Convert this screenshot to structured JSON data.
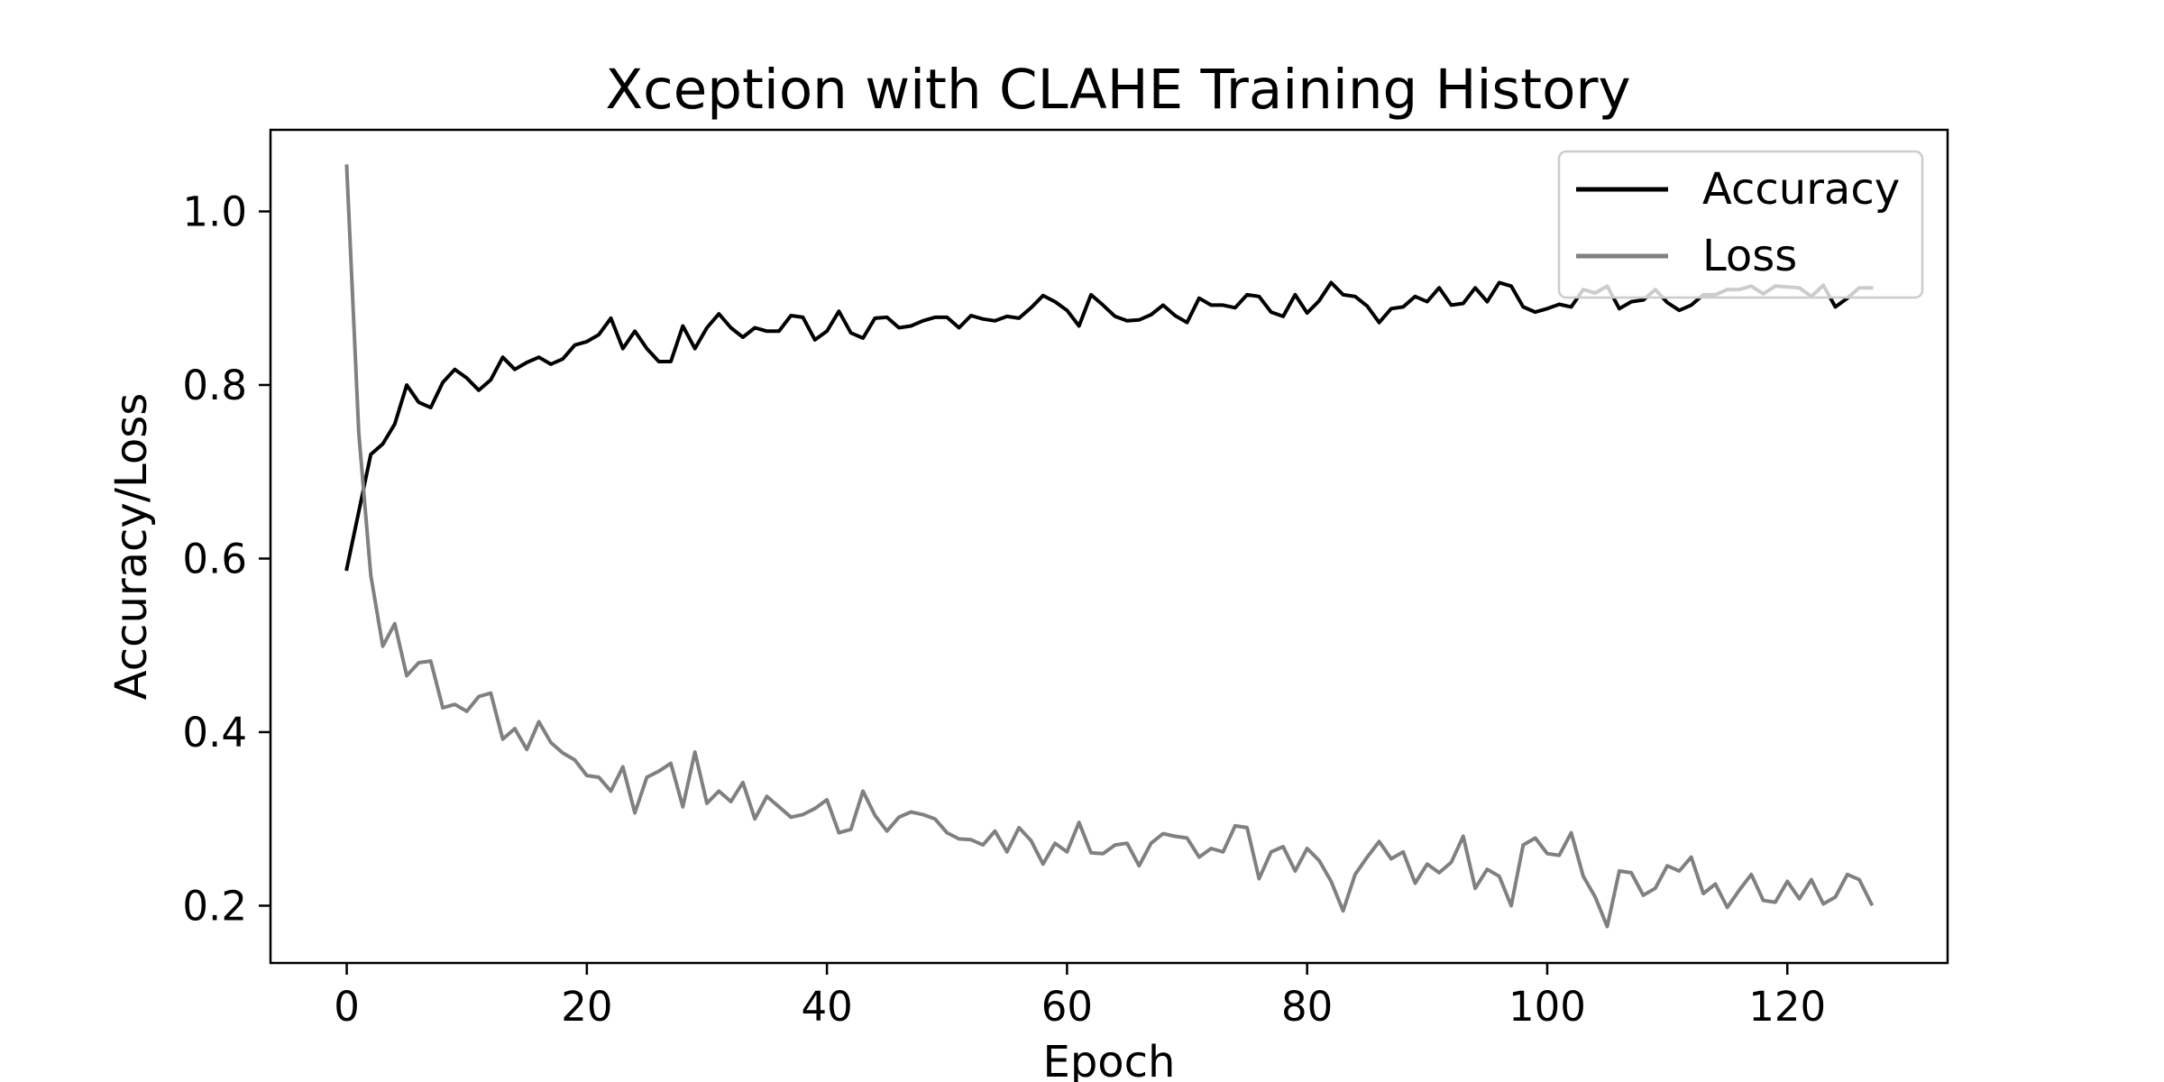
{
  "chart_data": {
    "type": "line",
    "title": "Xception with CLAHE Training History",
    "xlabel": "Epoch",
    "ylabel": "Accuracy/Loss",
    "xlim": [
      -6.35,
      133.35
    ],
    "ylim": [
      0.134,
      1.094
    ],
    "x_ticks": [
      0,
      20,
      40,
      60,
      80,
      100,
      120
    ],
    "y_ticks": [
      0.2,
      0.4,
      0.6,
      0.8,
      1.0
    ],
    "x_tick_labels": [
      "0",
      "20",
      "40",
      "60",
      "80",
      "100",
      "120"
    ],
    "y_tick_labels": [
      "0.2",
      "0.4",
      "0.6",
      "0.8",
      "1.0"
    ],
    "grid": false,
    "legend_position": "top-right",
    "x_start": 0,
    "x_step": 1,
    "series": [
      {
        "name": "Accuracy",
        "color": "#000000",
        "values": [
          0.588,
          0.654,
          0.72,
          0.732,
          0.755,
          0.8,
          0.78,
          0.774,
          0.803,
          0.818,
          0.808,
          0.794,
          0.806,
          0.832,
          0.818,
          0.826,
          0.832,
          0.824,
          0.83,
          0.846,
          0.85,
          0.858,
          0.877,
          0.842,
          0.862,
          0.842,
          0.827,
          0.827,
          0.868,
          0.842,
          0.866,
          0.882,
          0.866,
          0.855,
          0.866,
          0.862,
          0.862,
          0.88,
          0.878,
          0.852,
          0.862,
          0.885,
          0.86,
          0.854,
          0.877,
          0.878,
          0.866,
          0.868,
          0.874,
          0.878,
          0.878,
          0.866,
          0.88,
          0.876,
          0.874,
          0.879,
          0.877,
          0.889,
          0.903,
          0.896,
          0.886,
          0.868,
          0.904,
          0.892,
          0.879,
          0.874,
          0.875,
          0.881,
          0.892,
          0.88,
          0.872,
          0.9,
          0.892,
          0.892,
          0.889,
          0.904,
          0.902,
          0.884,
          0.879,
          0.904,
          0.883,
          0.897,
          0.918,
          0.904,
          0.902,
          0.891,
          0.872,
          0.888,
          0.89,
          0.902,
          0.896,
          0.912,
          0.892,
          0.894,
          0.912,
          0.896,
          0.918,
          0.914,
          0.89,
          0.884,
          0.888,
          0.893,
          0.89,
          0.91,
          0.906,
          0.914,
          0.888,
          0.896,
          0.898,
          0.91,
          0.895,
          0.886,
          0.892,
          0.904,
          0.904,
          0.91,
          0.91,
          0.914,
          0.905,
          0.914,
          0.913,
          0.912,
          0.902,
          0.915,
          0.89,
          0.9,
          0.912,
          0.912
        ]
      },
      {
        "name": "Loss",
        "color": "#808080",
        "values": [
          1.052,
          0.745,
          0.581,
          0.499,
          0.525,
          0.465,
          0.48,
          0.482,
          0.428,
          0.432,
          0.424,
          0.441,
          0.445,
          0.392,
          0.404,
          0.38,
          0.412,
          0.388,
          0.376,
          0.368,
          0.35,
          0.348,
          0.332,
          0.36,
          0.307,
          0.348,
          0.355,
          0.364,
          0.314,
          0.377,
          0.318,
          0.332,
          0.32,
          0.342,
          0.3,
          0.326,
          0.314,
          0.302,
          0.305,
          0.312,
          0.322,
          0.284,
          0.288,
          0.332,
          0.304,
          0.286,
          0.302,
          0.308,
          0.305,
          0.3,
          0.284,
          0.277,
          0.276,
          0.27,
          0.286,
          0.262,
          0.29,
          0.275,
          0.248,
          0.272,
          0.262,
          0.296,
          0.261,
          0.26,
          0.27,
          0.272,
          0.246,
          0.272,
          0.283,
          0.28,
          0.278,
          0.256,
          0.266,
          0.262,
          0.292,
          0.29,
          0.231,
          0.262,
          0.268,
          0.24,
          0.266,
          0.252,
          0.228,
          0.194,
          0.236,
          0.256,
          0.274,
          0.254,
          0.262,
          0.226,
          0.248,
          0.238,
          0.25,
          0.28,
          0.22,
          0.242,
          0.234,
          0.2,
          0.27,
          0.278,
          0.26,
          0.258,
          0.284,
          0.234,
          0.21,
          0.176,
          0.24,
          0.238,
          0.212,
          0.22,
          0.246,
          0.24,
          0.256,
          0.214,
          0.225,
          0.198,
          0.218,
          0.236,
          0.206,
          0.204,
          0.228,
          0.208,
          0.23,
          0.202,
          0.21,
          0.236,
          0.23,
          0.202
        ]
      }
    ]
  }
}
